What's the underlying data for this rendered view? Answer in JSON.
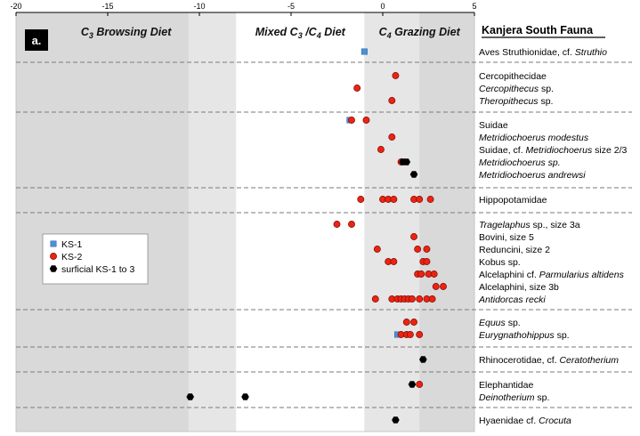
{
  "chart_data": {
    "type": "scatter",
    "panel_label": "a.",
    "header": "Kanjera South Fauna",
    "xlim": [
      -20,
      5
    ],
    "x_ticks": [
      -20,
      -15,
      -10,
      -5,
      0,
      5
    ],
    "x_tick_labels": [
      "-20",
      "-15",
      "-10",
      "-5",
      "0",
      "5"
    ],
    "regions": [
      {
        "label_parts": [
          {
            "t": "C"
          },
          {
            "t": "3",
            "sub": true
          },
          {
            "t": " Browsing Diet"
          }
        ],
        "x_from": -20,
        "x_to": -8,
        "color": "#d9d9d9"
      },
      {
        "label_parts": [
          {
            "t": "Mixed C"
          },
          {
            "t": "3",
            "sub": true
          },
          {
            "t": " /C"
          },
          {
            "t": "4",
            "sub": true
          },
          {
            "t": " Diet"
          }
        ],
        "x_from": -8,
        "x_to": -1,
        "color": "#ffffff"
      },
      {
        "label_parts": [
          {
            "t": "C"
          },
          {
            "t": "4",
            "sub": true
          },
          {
            "t": " Grazing Diet"
          }
        ],
        "x_from": -1,
        "x_to": 5,
        "color": "#d9d9d9"
      }
    ],
    "inner_bands": [
      {
        "x_from": -10.6,
        "x_to": -8,
        "color": "#e6e6e6"
      },
      {
        "x_from": -1,
        "x_to": 2,
        "color": "#e6e6e6"
      }
    ],
    "legend": [
      {
        "name": "KS-1",
        "marker": "square",
        "color": "#4f8fd6"
      },
      {
        "name": "KS-2",
        "marker": "circle",
        "color": "#ee2211"
      },
      {
        "name": "surficial KS-1 to 3",
        "marker": "hexagon",
        "color": "#000000"
      }
    ],
    "rows": [
      {
        "parts": [
          {
            "t": "Aves Struthionidae, cf. "
          },
          {
            "t": "Struthio",
            "i": true
          }
        ],
        "y": 58
      },
      {
        "parts": [
          {
            "t": "Cercopithecidae"
          }
        ],
        "y": 85
      },
      {
        "parts": [
          {
            "t": "Cercopithecus",
            "i": true
          },
          {
            "t": " sp."
          }
        ],
        "y": 99
      },
      {
        "parts": [
          {
            "t": "Theropithecus",
            "i": true
          },
          {
            "t": " sp."
          }
        ],
        "y": 113
      },
      {
        "parts": [
          {
            "t": "Suidae"
          }
        ],
        "y": 140
      },
      {
        "parts": [
          {
            "t": "Metridiochoerus modestus",
            "i": true
          }
        ],
        "y": 154
      },
      {
        "parts": [
          {
            "t": "Suidae, cf. "
          },
          {
            "t": "Metridiochoerus",
            "i": true
          },
          {
            "t": " size 2/3"
          }
        ],
        "y": 168
      },
      {
        "parts": [
          {
            "t": "Metridiochoerus sp.",
            "i": true
          }
        ],
        "y": 182
      },
      {
        "parts": [
          {
            "t": "Metridiochoerus andrewsi",
            "i": true
          }
        ],
        "y": 196
      },
      {
        "parts": [
          {
            "t": "Hippopotamidae"
          }
        ],
        "y": 224
      },
      {
        "parts": [
          {
            "t": "Tragelaphus",
            "i": true
          },
          {
            "t": " sp., size 3a"
          }
        ],
        "y": 252
      },
      {
        "parts": [
          {
            "t": "Bovini, size 5"
          }
        ],
        "y": 266
      },
      {
        "parts": [
          {
            "t": "Reduncini, size 2"
          }
        ],
        "y": 280
      },
      {
        "parts": [
          {
            "t": "Kobus sp."
          }
        ],
        "y": 294
      },
      {
        "parts": [
          {
            "t": "Alcelaphini cf. "
          },
          {
            "t": "Parmularius altidens",
            "i": true
          }
        ],
        "y": 308
      },
      {
        "parts": [
          {
            "t": "Alcelaphini, size 3b"
          }
        ],
        "y": 322
      },
      {
        "parts": [
          {
            "t": "Antidorcas recki",
            "i": true
          }
        ],
        "y": 336
      },
      {
        "parts": [
          {
            "t": "Equus",
            "i": true
          },
          {
            "t": " sp."
          }
        ],
        "y": 362
      },
      {
        "parts": [
          {
            "t": "Eurygnathohippus",
            "i": true
          },
          {
            "t": " sp."
          }
        ],
        "y": 376
      },
      {
        "parts": [
          {
            "t": "Rhinocerotidae, cf. "
          },
          {
            "t": "Ceratotherium",
            "i": true
          }
        ],
        "y": 404
      },
      {
        "parts": [
          {
            "t": "Elephantidae"
          }
        ],
        "y": 432
      },
      {
        "parts": [
          {
            "t": "Deinotherium",
            "i": true
          },
          {
            "t": " sp."
          }
        ],
        "y": 446
      },
      {
        "parts": [
          {
            "t": "Hyaenidae cf. "
          },
          {
            "t": "Crocuta",
            "i": true
          }
        ],
        "y": 472
      }
    ],
    "group_separators_y": [
      70,
      126,
      211,
      239,
      348,
      390,
      418,
      458
    ],
    "series": [
      {
        "name": "KS-1",
        "marker": "square",
        "points": [
          {
            "x": -1.0,
            "y": 58
          },
          {
            "x": -1.8,
            "y": 135
          },
          {
            "x": 0.8,
            "y": 376
          }
        ]
      },
      {
        "name": "KS-2",
        "marker": "circle",
        "points": [
          {
            "x": 0.7,
            "y": 85
          },
          {
            "x": -1.4,
            "y": 99
          },
          {
            "x": 0.5,
            "y": 113
          },
          {
            "x": -1.7,
            "y": 135
          },
          {
            "x": -0.9,
            "y": 135
          },
          {
            "x": 0.5,
            "y": 154
          },
          {
            "x": -0.1,
            "y": 168
          },
          {
            "x": 1.0,
            "y": 182
          },
          {
            "x": -1.2,
            "y": 224
          },
          {
            "x": 0.0,
            "y": 224
          },
          {
            "x": 0.3,
            "y": 224
          },
          {
            "x": 0.6,
            "y": 224
          },
          {
            "x": 1.7,
            "y": 224
          },
          {
            "x": 2.0,
            "y": 224
          },
          {
            "x": 2.6,
            "y": 224
          },
          {
            "x": -2.5,
            "y": 252
          },
          {
            "x": -1.7,
            "y": 252
          },
          {
            "x": 1.7,
            "y": 266
          },
          {
            "x": -0.3,
            "y": 280
          },
          {
            "x": 1.9,
            "y": 280
          },
          {
            "x": 2.4,
            "y": 280
          },
          {
            "x": 0.3,
            "y": 294
          },
          {
            "x": 0.6,
            "y": 294
          },
          {
            "x": 2.2,
            "y": 294
          },
          {
            "x": 2.4,
            "y": 294
          },
          {
            "x": 1.9,
            "y": 308
          },
          {
            "x": 2.1,
            "y": 308
          },
          {
            "x": 2.5,
            "y": 308
          },
          {
            "x": 2.8,
            "y": 308
          },
          {
            "x": 2.9,
            "y": 322
          },
          {
            "x": 3.3,
            "y": 322
          },
          {
            "x": -0.4,
            "y": 336
          },
          {
            "x": 0.5,
            "y": 336
          },
          {
            "x": 0.8,
            "y": 336
          },
          {
            "x": 1.0,
            "y": 336
          },
          {
            "x": 1.2,
            "y": 336
          },
          {
            "x": 1.4,
            "y": 336
          },
          {
            "x": 1.6,
            "y": 336
          },
          {
            "x": 2.0,
            "y": 336
          },
          {
            "x": 2.4,
            "y": 336
          },
          {
            "x": 2.7,
            "y": 336
          },
          {
            "x": 1.3,
            "y": 362
          },
          {
            "x": 1.7,
            "y": 362
          },
          {
            "x": 1.0,
            "y": 376
          },
          {
            "x": 1.3,
            "y": 376
          },
          {
            "x": 1.5,
            "y": 376
          },
          {
            "x": 2.0,
            "y": 376
          },
          {
            "x": 2.0,
            "y": 432
          }
        ]
      },
      {
        "name": "surficial KS-1 to 3",
        "marker": "hexagon",
        "points": [
          {
            "x": 1.1,
            "y": 182
          },
          {
            "x": 1.3,
            "y": 182
          },
          {
            "x": 1.7,
            "y": 196
          },
          {
            "x": 2.2,
            "y": 404
          },
          {
            "x": 1.6,
            "y": 432
          },
          {
            "x": -10.5,
            "y": 446
          },
          {
            "x": -7.5,
            "y": 446
          },
          {
            "x": 0.7,
            "y": 472
          }
        ]
      }
    ]
  }
}
